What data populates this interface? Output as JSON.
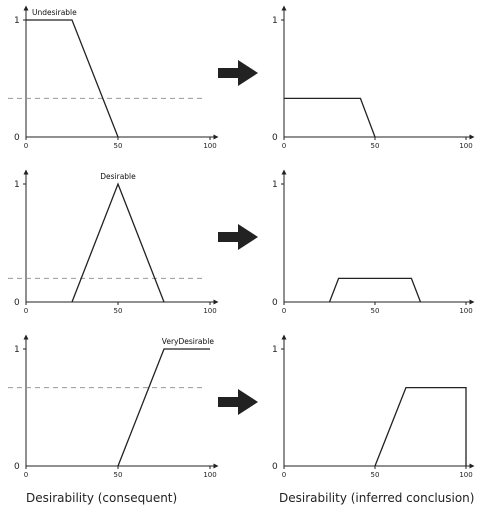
{
  "scale": {
    "x_ticks": [
      "0",
      "50",
      "100"
    ],
    "y_ticks": [
      "0",
      "1"
    ]
  },
  "rows": [
    {
      "consequent": {
        "set_label": "Undesirable",
        "points": [
          [
            0,
            1
          ],
          [
            25,
            1
          ],
          [
            50,
            0
          ]
        ],
        "cut_level": 0.33
      },
      "inferred": {
        "points": [
          [
            0,
            0.33
          ],
          [
            42,
            0.33
          ],
          [
            50,
            0
          ]
        ]
      }
    },
    {
      "consequent": {
        "set_label": "Desirable",
        "points": [
          [
            25,
            0
          ],
          [
            50,
            1
          ],
          [
            75,
            0
          ]
        ],
        "cut_level": 0.2
      },
      "inferred": {
        "points": [
          [
            25,
            0
          ],
          [
            30,
            0.2
          ],
          [
            70,
            0.2
          ],
          [
            75,
            0
          ]
        ]
      }
    },
    {
      "consequent": {
        "set_label": "VeryDesirable",
        "points": [
          [
            50,
            0
          ],
          [
            75,
            1
          ],
          [
            100,
            1
          ]
        ],
        "cut_level": 0.67
      },
      "inferred": {
        "points": [
          [
            50,
            0
          ],
          [
            67,
            0.67
          ],
          [
            100,
            0.67
          ],
          [
            100,
            0
          ]
        ]
      }
    }
  ],
  "captions": {
    "left": "Desirability (consequent)",
    "right": "Desirability (inferred conclusion)"
  },
  "colors": {
    "line": "#222222",
    "dash": "#999999",
    "arrow": "#222222"
  },
  "icons": {
    "arrow": "right-arrow-icon"
  }
}
